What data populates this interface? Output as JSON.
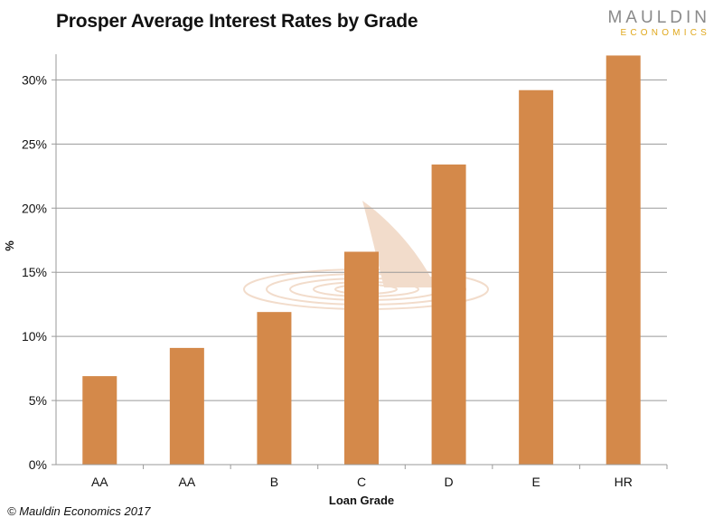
{
  "title": "Prosper Average Interest Rates by Grade",
  "logo": {
    "top": "MAULDIN",
    "bottom": "ECONOMICS"
  },
  "footer": "© Mauldin Economics 2017",
  "colors": {
    "bar": "#d4894a",
    "grid": "#9a9a9a",
    "watermark": "#f2dccb"
  },
  "chart_data": {
    "type": "bar",
    "title": "Prosper Average Interest Rates by Grade",
    "xlabel": "Loan Grade",
    "ylabel": "%",
    "ylim": [
      0,
      32
    ],
    "yticks": [
      0,
      5,
      10,
      15,
      20,
      25,
      30
    ],
    "ytick_labels": [
      "0%",
      "5%",
      "10%",
      "15%",
      "20%",
      "25%",
      "30%"
    ],
    "grid": true,
    "categories": [
      "AA",
      "AA",
      "B",
      "C",
      "D",
      "E",
      "HR"
    ],
    "values": [
      6.9,
      9.1,
      11.9,
      16.6,
      23.4,
      29.2,
      31.9
    ]
  }
}
